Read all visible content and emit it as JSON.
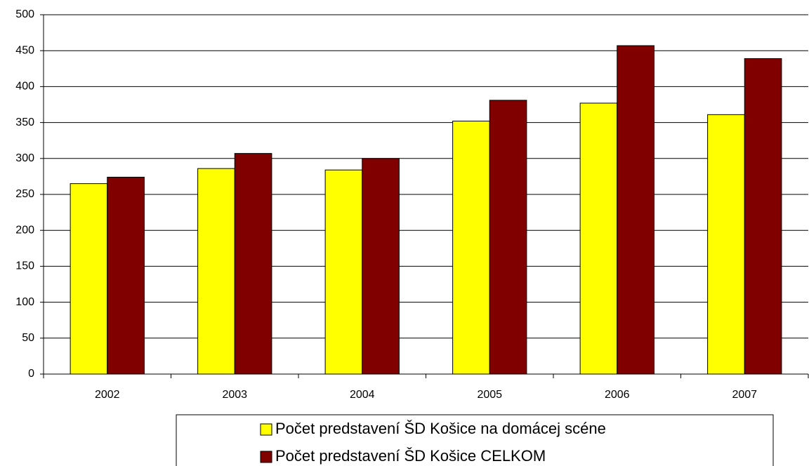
{
  "chart_data": {
    "type": "bar",
    "categories": [
      "2002",
      "2003",
      "2004",
      "2005",
      "2006",
      "2007"
    ],
    "series": [
      {
        "name": "Počet predstavení ŠD Košice na domácej scéne",
        "color": "#ffff00",
        "values": [
          265,
          286,
          284,
          352,
          377,
          361
        ]
      },
      {
        "name": "Počet predstavení ŠD Košice CELKOM",
        "color": "#800000",
        "values": [
          274,
          307,
          300,
          381,
          457,
          439
        ]
      }
    ],
    "ylim": [
      0,
      500
    ],
    "yticks": [
      0,
      50,
      100,
      150,
      200,
      250,
      300,
      350,
      400,
      450,
      500
    ],
    "grid": true,
    "legend": "bottom"
  }
}
